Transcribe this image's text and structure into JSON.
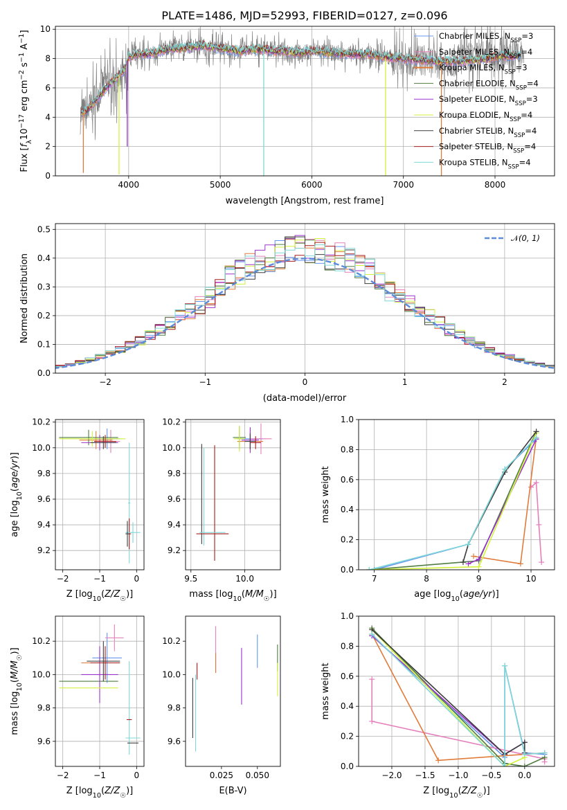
{
  "chart_data": [
    {
      "id": "spectrum",
      "type": "line",
      "title": "PLATE=1486, MJD=52993, FIBERID=0127, z=0.096",
      "xlabel": "wavelength [Angstrom, rest frame]",
      "ylabel": "Flux [f_λ10⁻¹⁷ erg cm⁻² s⁻¹ A⁻¹]",
      "xlim": [
        3200,
        8650
      ],
      "ylim": [
        0,
        10.2
      ],
      "xticks": [
        4000,
        5000,
        6000,
        7000,
        8000
      ],
      "yticks": [
        0,
        2,
        4,
        6,
        8,
        10
      ],
      "legend_placement": "right",
      "data_color": "#808080",
      "data_x": [
        3500,
        3520,
        3560,
        3600,
        3650,
        3700,
        3750,
        3800,
        3860,
        3900,
        3930,
        3960,
        4000,
        4050,
        4100,
        4200,
        4300,
        4400,
        4500,
        4600,
        4700,
        4800,
        4861,
        4900,
        5000,
        5100,
        5175,
        5300,
        5400,
        5500,
        5600,
        5700,
        5800,
        5890,
        6000,
        6100,
        6200,
        6300,
        6400,
        6500,
        6563,
        6600,
        6700,
        6800,
        6900,
        7000,
        7100,
        7200,
        7300,
        7400,
        7500,
        7600,
        7700,
        7800,
        7900,
        8000,
        8100,
        8200,
        8300
      ],
      "data_y": [
        4.1,
        4.3,
        4.4,
        4.8,
        5.5,
        6.0,
        6.3,
        6.8,
        6.6,
        6.0,
        6.9,
        6.5,
        8.0,
        8.2,
        8.4,
        8.3,
        8.4,
        8.7,
        8.8,
        8.8,
        8.9,
        9.0,
        8.5,
        8.8,
        8.7,
        8.6,
        8.4,
        8.7,
        8.6,
        8.7,
        8.6,
        8.6,
        8.5,
        8.3,
        8.6,
        8.5,
        8.4,
        8.3,
        8.3,
        8.4,
        8.0,
        8.3,
        8.2,
        8.1,
        8.0,
        8.0,
        7.9,
        7.9,
        7.8,
        7.7,
        7.8,
        7.9,
        8.0,
        8.1,
        8.2,
        8.2,
        8.3,
        8.3,
        8.2
      ],
      "model_x": [
        3480,
        3550,
        3650,
        3750,
        3850,
        3950,
        4000,
        4100,
        4200,
        4300,
        4400,
        4500,
        4600,
        4700,
        4800,
        4900,
        5000,
        5100,
        5200,
        5300,
        5400,
        5500,
        5600,
        5700,
        5800,
        5900,
        6000,
        6200,
        6400,
        6600,
        6800,
        7000,
        7200,
        7400,
        7600,
        7800,
        8000,
        8200
      ],
      "model_y": [
        4.2,
        4.5,
        5.2,
        6.0,
        6.6,
        7.2,
        8.1,
        8.3,
        8.3,
        8.4,
        8.6,
        8.7,
        8.7,
        8.8,
        8.9,
        8.8,
        8.7,
        8.6,
        8.5,
        8.6,
        8.6,
        8.6,
        8.5,
        8.5,
        8.4,
        8.4,
        8.5,
        8.4,
        8.3,
        8.3,
        8.1,
        8.0,
        7.9,
        7.8,
        7.8,
        7.9,
        8.1,
        8.2
      ],
      "series": [
        {
          "name": "Chabrier MILES, N_SSP=3",
          "color": "#6495ed",
          "lw": 1.0
        },
        {
          "name": "Salpeter MILES, N_SSP=4",
          "color": "#e57fbc",
          "lw": 1.0
        },
        {
          "name": "Kroupa MILES, N_SSP=3",
          "color": "#e07b39",
          "lw": 2.0
        },
        {
          "name": "Chabrier ELODIE, N_SSP=4",
          "color": "#4f7d3f",
          "lw": 1.0
        },
        {
          "name": "Salpeter ELODIE, N_SSP=3",
          "color": "#9932cc",
          "lw": 1.0
        },
        {
          "name": "Kroupa ELODIE, N_SSP=4",
          "color": "#d2f23c",
          "lw": 1.0
        },
        {
          "name": "Chabrier STELIB, N_SSP=4",
          "color": "#3c3c3c",
          "lw": 1.0
        },
        {
          "name": "Salpeter STELIB, N_SSP=4",
          "color": "#a61c1c",
          "lw": 1.0
        },
        {
          "name": "Kroupa STELIB, N_SSP=4",
          "color": "#7fd7d7",
          "lw": 1.0
        }
      ],
      "spikes": [
        {
          "x": 3505,
          "y": 0.2,
          "series": 2
        },
        {
          "x": 3895,
          "y": 0.1,
          "series": 5
        },
        {
          "x": 3985,
          "y": 2.0,
          "series": 4
        },
        {
          "x": 5475,
          "y": 0.0,
          "series": 8
        },
        {
          "x": 6805,
          "y": 0.0,
          "series": 5
        },
        {
          "x": 7415,
          "y": 0.0,
          "series": 2
        }
      ]
    },
    {
      "id": "residuals",
      "type": "line",
      "xlabel": "(data-model)/error",
      "ylabel": "Normed distribution",
      "xlim": [
        -2.5,
        2.5
      ],
      "ylim": [
        0,
        0.52
      ],
      "xticks": [
        -2,
        -1,
        0,
        1,
        2
      ],
      "yticks": [
        0.0,
        0.1,
        0.2,
        0.3,
        0.4,
        0.5
      ],
      "legend": "N(0, 1)",
      "gauss_color": "#5b8bd9",
      "bin_width": 0.1
    },
    {
      "id": "age_vs_Z",
      "type": "scatter",
      "xlabel": "Z [log10(Z/Z☉)]",
      "ylabel": "age  [log10(age/yr)]",
      "xlim": [
        -2.2,
        0.2
      ],
      "ylim": [
        9.05,
        10.22
      ],
      "xticks": [
        -2,
        -1,
        0
      ],
      "yticks": [
        9.2,
        9.4,
        9.6,
        9.8,
        10.0,
        10.2
      ],
      "points": [
        {
          "x": -0.8,
          "y": 10.07,
          "xerr": 0.35,
          "yerr": 0.08,
          "s": 0
        },
        {
          "x": -0.7,
          "y": 10.05,
          "xerr": 0.25,
          "yerr": 0.09,
          "s": 1
        },
        {
          "x": -1.1,
          "y": 10.06,
          "xerr": 0.45,
          "yerr": 0.07,
          "s": 2
        },
        {
          "x": -1.3,
          "y": 10.08,
          "xerr": 0.8,
          "yerr": 0.06,
          "s": 3
        },
        {
          "x": -1.0,
          "y": 10.04,
          "xerr": 0.5,
          "yerr": 0.06,
          "s": 4
        },
        {
          "x": -1.2,
          "y": 10.07,
          "xerr": 0.9,
          "yerr": 0.06,
          "s": 5
        },
        {
          "x": -0.9,
          "y": 10.04,
          "xerr": 0.35,
          "yerr": 0.05,
          "s": 6
        },
        {
          "x": -0.85,
          "y": 10.05,
          "xerr": 0.3,
          "yerr": 0.05,
          "s": 7
        },
        {
          "x": -0.2,
          "y": 9.57,
          "xerr": 0.03,
          "yerr": 0.47,
          "s": 8
        },
        {
          "x": -0.2,
          "y": 9.33,
          "xerr": 0.05,
          "yerr": 0.12,
          "s": 7
        },
        {
          "x": -0.1,
          "y": 9.34,
          "xerr": 0.2,
          "yerr": 0.08,
          "s": 8
        },
        {
          "x": -0.25,
          "y": 9.33,
          "xerr": 0.05,
          "yerr": 0.1,
          "s": 6
        }
      ]
    },
    {
      "id": "age_vs_mass",
      "type": "scatter",
      "xlabel": "mass [log10(M/M☉)]",
      "ylabel": "",
      "xlim": [
        9.45,
        10.33
      ],
      "ylim": [
        9.05,
        10.22
      ],
      "xticks": [
        9.5,
        10.0
      ],
      "yticks": [
        9.2,
        9.4,
        9.6,
        9.8,
        10.0,
        10.2
      ],
      "points": [
        {
          "x": 10.05,
          "y": 10.07,
          "xerr": 0.12,
          "yerr": 0.08,
          "s": 0
        },
        {
          "x": 10.15,
          "y": 10.07,
          "xerr": 0.1,
          "yerr": 0.12,
          "s": 1
        },
        {
          "x": 10.05,
          "y": 10.05,
          "xerr": 0.12,
          "yerr": 0.07,
          "s": 2
        },
        {
          "x": 9.95,
          "y": 10.08,
          "xerr": 0.06,
          "yerr": 0.09,
          "s": 3
        },
        {
          "x": 10.05,
          "y": 10.06,
          "xerr": 0.08,
          "yerr": 0.1,
          "s": 4
        },
        {
          "x": 9.95,
          "y": 10.07,
          "xerr": 0.05,
          "yerr": 0.1,
          "s": 5
        },
        {
          "x": 10.05,
          "y": 10.05,
          "xerr": 0.05,
          "yerr": 0.06,
          "s": 6
        },
        {
          "x": 10.1,
          "y": 10.04,
          "xerr": 0.05,
          "yerr": 0.05,
          "s": 7
        },
        {
          "x": 9.6,
          "y": 9.64,
          "xerr": 0.0,
          "yerr": 0.39,
          "s": 6
        },
        {
          "x": 9.62,
          "y": 9.62,
          "xerr": 0.0,
          "yerr": 0.38,
          "s": 8
        },
        {
          "x": 9.72,
          "y": 9.57,
          "xerr": 0.0,
          "yerr": 0.45,
          "s": 7
        },
        {
          "x": 9.7,
          "y": 9.33,
          "xerr": 0.15,
          "yerr": 0.0,
          "s": 7
        },
        {
          "x": 9.7,
          "y": 9.34,
          "xerr": 0.12,
          "yerr": 0.0,
          "s": 8
        }
      ]
    },
    {
      "id": "weight_vs_age",
      "type": "line",
      "xlabel": "age  [log10(age/yr)]",
      "ylabel": "mass weight",
      "xlim": [
        6.7,
        10.45
      ],
      "ylim": [
        0,
        1.0
      ],
      "xticks": [
        7,
        8,
        9,
        10
      ],
      "yticks": [
        0.0,
        0.2,
        0.4,
        0.6,
        0.8,
        1.0
      ],
      "series": [
        {
          "s": 0,
          "x": [
            7.0,
            8.8,
            9.5,
            10.1
          ],
          "y": [
            0.0,
            0.17,
            0.67,
            0.87
          ]
        },
        {
          "s": 1,
          "x": [
            10.0,
            10.1,
            10.15,
            10.2
          ],
          "y": [
            0.55,
            0.58,
            0.3,
            0.05
          ]
        },
        {
          "s": 2,
          "x": [
            8.9,
            9.8,
            10.1
          ],
          "y": [
            0.09,
            0.04,
            0.88
          ]
        },
        {
          "s": 3,
          "x": [
            6.9,
            9.0,
            10.1
          ],
          "y": [
            0.0,
            0.06,
            0.92
          ]
        },
        {
          "s": 4,
          "x": [
            8.8,
            9.0,
            10.1
          ],
          "y": [
            0.04,
            0.07,
            0.87
          ]
        },
        {
          "s": 5,
          "x": [
            6.9,
            9.0,
            10.1
          ],
          "y": [
            0.0,
            0.02,
            0.91
          ]
        },
        {
          "s": 6,
          "x": [
            8.7,
            8.8,
            9.5,
            10.1
          ],
          "y": [
            0.05,
            0.17,
            0.65,
            0.92
          ]
        },
        {
          "s": 8,
          "x": [
            6.9,
            8.8,
            9.5,
            10.1
          ],
          "y": [
            0.0,
            0.17,
            0.67,
            0.88
          ]
        }
      ]
    },
    {
      "id": "mass_vs_Z",
      "type": "scatter",
      "xlabel": "Z [log10(Z/Z☉)]",
      "ylabel": "mass [log10(M/M☉)]",
      "xlim": [
        -2.2,
        0.2
      ],
      "ylim": [
        9.45,
        10.35
      ],
      "xticks": [
        -2,
        -1,
        0
      ],
      "yticks": [
        9.6,
        9.8,
        10.0,
        10.2
      ],
      "points": [
        {
          "x": -0.8,
          "y": 10.1,
          "xerr": 0.4,
          "yerr": 0.15,
          "s": 0
        },
        {
          "x": -0.6,
          "y": 10.22,
          "xerr": 0.25,
          "yerr": 0.08,
          "s": 1
        },
        {
          "x": -1.0,
          "y": 10.07,
          "xerr": 0.5,
          "yerr": 0.08,
          "s": 2
        },
        {
          "x": -1.3,
          "y": 9.96,
          "xerr": 0.8,
          "yerr": 0.0,
          "s": 3
        },
        {
          "x": -1.0,
          "y": 10.0,
          "xerr": 0.5,
          "yerr": 0.17,
          "s": 4
        },
        {
          "x": -1.3,
          "y": 9.92,
          "xerr": 0.8,
          "yerr": 0.0,
          "s": 5
        },
        {
          "x": -0.9,
          "y": 10.08,
          "xerr": 0.45,
          "yerr": 0.12,
          "s": 6
        },
        {
          "x": -0.85,
          "y": 10.07,
          "xerr": 0.4,
          "yerr": 0.1,
          "s": 7
        },
        {
          "x": -0.2,
          "y": 9.8,
          "xerr": 0.02,
          "yerr": 0.28,
          "s": 8
        },
        {
          "x": -0.1,
          "y": 9.62,
          "xerr": 0.2,
          "yerr": 0.0,
          "s": 8
        },
        {
          "x": -0.1,
          "y": 9.59,
          "xerr": 0.15,
          "yerr": 0.0,
          "s": 6
        },
        {
          "x": -0.2,
          "y": 9.73,
          "xerr": 0.07,
          "yerr": 0.0,
          "s": 7
        }
      ]
    },
    {
      "id": "mass_vs_ebv",
      "type": "scatter",
      "xlabel": "E(B-V)",
      "ylabel": "",
      "xlim": [
        0.0,
        0.066
      ],
      "ylim": [
        9.45,
        10.35
      ],
      "xticks": [
        0.025,
        0.05
      ],
      "yticks": [
        9.6,
        9.8,
        10.0,
        10.2
      ],
      "points": [
        {
          "x": 0.005,
          "y": 9.8,
          "xerr": 0,
          "yerr": 0.18,
          "s": 6
        },
        {
          "x": 0.007,
          "y": 9.77,
          "xerr": 0,
          "yerr": 0.23,
          "s": 8
        },
        {
          "x": 0.008,
          "y": 10.02,
          "xerr": 0,
          "yerr": 0.05,
          "s": 7
        },
        {
          "x": 0.021,
          "y": 10.15,
          "xerr": 0,
          "yerr": 0.14,
          "s": 1
        },
        {
          "x": 0.021,
          "y": 10.07,
          "xerr": 0,
          "yerr": 0.06,
          "s": 2
        },
        {
          "x": 0.039,
          "y": 9.99,
          "xerr": 0,
          "yerr": 0.17,
          "s": 4
        },
        {
          "x": 0.05,
          "y": 10.14,
          "xerr": 0,
          "yerr": 0.1,
          "s": 0
        },
        {
          "x": 0.064,
          "y": 10.1,
          "xerr": 0,
          "yerr": 0.08,
          "s": 3
        },
        {
          "x": 0.064,
          "y": 9.97,
          "xerr": 0,
          "yerr": 0.1,
          "s": 5
        }
      ]
    },
    {
      "id": "weight_vs_Z",
      "type": "line",
      "xlabel": "Z [log10(Z/Z☉)]",
      "ylabel": "mass weight",
      "xlim": [
        -2.5,
        0.45
      ],
      "ylim": [
        0,
        1.0
      ],
      "xticks": [
        -2.0,
        -1.5,
        -1.0,
        -0.5,
        0.0
      ],
      "yticks": [
        0.0,
        0.2,
        0.4,
        0.6,
        0.8,
        1.0
      ],
      "series": [
        {
          "s": 0,
          "x": [
            -2.3,
            -0.3,
            -0.3,
            0.0,
            0.3
          ],
          "y": [
            0.87,
            0.06,
            0.67,
            0.09,
            0.08
          ]
        },
        {
          "s": 1,
          "x": [
            -2.3,
            -2.3,
            0.3,
            0.3
          ],
          "y": [
            0.58,
            0.3,
            0.05,
            0.03
          ]
        },
        {
          "s": 2,
          "x": [
            -2.3,
            -1.3,
            0.3
          ],
          "y": [
            0.88,
            0.04,
            0.09
          ]
        },
        {
          "s": 3,
          "x": [
            -2.3,
            -0.3,
            0.0,
            0.3
          ],
          "y": [
            0.92,
            0.02,
            0.0,
            0.06
          ]
        },
        {
          "s": 4,
          "x": [
            -2.3,
            -0.3,
            0.0
          ],
          "y": [
            0.87,
            0.08,
            0.16
          ]
        },
        {
          "s": 5,
          "x": [
            -2.3,
            -0.3,
            0.0
          ],
          "y": [
            0.91,
            0.0,
            0.06
          ]
        },
        {
          "s": 6,
          "x": [
            -2.3,
            -0.3,
            0.0,
            0.0
          ],
          "y": [
            0.91,
            0.08,
            0.16,
            0.09
          ]
        },
        {
          "s": 8,
          "x": [
            -2.3,
            -0.3,
            -0.3,
            0.0,
            0.3
          ],
          "y": [
            0.88,
            0.0,
            0.67,
            0.08,
            0.09
          ]
        }
      ]
    }
  ]
}
